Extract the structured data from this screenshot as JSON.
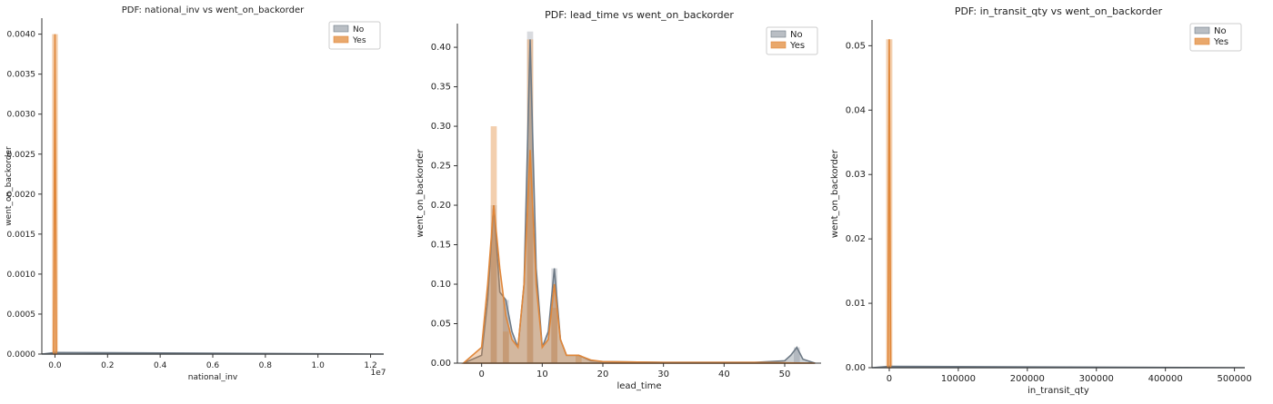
{
  "colors": {
    "no": "#6e7a86",
    "yes": "#e0873a",
    "no_fill": "#b9bec4",
    "yes_fill": "#e9a86c"
  },
  "chart_data": [
    {
      "type": "area",
      "title": "PDF: national_inv vs went_on_backorder",
      "xlabel": "national_inv",
      "ylabel": "went_on_backorder",
      "x_offset_label": "1e7",
      "xlim": [
        -0.05,
        1.25
      ],
      "ylim": [
        0,
        0.0042
      ],
      "xticks": [
        0.0,
        0.2,
        0.4,
        0.6,
        0.8,
        1.0,
        1.2
      ],
      "xtick_labels": [
        "0.0",
        "0.2",
        "0.4",
        "0.6",
        "0.8",
        "1.0",
        "1.2"
      ],
      "yticks": [
        0,
        0.0005,
        0.001,
        0.0015,
        0.002,
        0.0025,
        0.003,
        0.0035,
        0.004
      ],
      "ytick_labels": [
        "0.0000",
        "0.0005",
        "0.0010",
        "0.0015",
        "0.0020",
        "0.0025",
        "0.0030",
        "0.0035",
        "0.0040"
      ],
      "legend": "top-right",
      "series": [
        {
          "name": "No",
          "bars": [],
          "x": [
            -0.05,
            0,
            1.25
          ],
          "y": [
            0,
            2e-05,
            0
          ]
        },
        {
          "name": "Yes",
          "bars": [
            [
              0,
              0.004
            ]
          ],
          "x": [
            -0.005,
            0,
            0.005
          ],
          "y": [
            0,
            0.004,
            0
          ]
        }
      ]
    },
    {
      "type": "area",
      "title": "PDF: lead_time vs went_on_backorder",
      "xlabel": "lead_time",
      "ylabel": "went_on_backorder",
      "x_offset_label": "",
      "xlim": [
        -4,
        56
      ],
      "ylim": [
        0,
        0.43
      ],
      "xticks": [
        0,
        10,
        20,
        30,
        40,
        50
      ],
      "xtick_labels": [
        "0",
        "10",
        "20",
        "30",
        "40",
        "50"
      ],
      "yticks": [
        0,
        0.05,
        0.1,
        0.15,
        0.2,
        0.25,
        0.3,
        0.35,
        0.4
      ],
      "ytick_labels": [
        "0.00",
        "0.05",
        "0.10",
        "0.15",
        "0.20",
        "0.25",
        "0.30",
        "0.35",
        "0.40"
      ],
      "legend": "top-right",
      "series": [
        {
          "name": "No",
          "bars": [
            [
              2,
              0.2
            ],
            [
              4,
              0.08
            ],
            [
              8,
              0.42
            ],
            [
              12,
              0.12
            ],
            [
              52,
              0.02
            ]
          ],
          "x": [
            -3,
            0,
            1,
            2,
            3,
            4,
            5,
            6,
            7,
            8,
            9,
            10,
            11,
            12,
            13,
            14,
            16,
            18,
            20,
            30,
            45,
            50,
            51,
            52,
            53,
            55
          ],
          "y": [
            0,
            0.01,
            0.08,
            0.2,
            0.09,
            0.08,
            0.04,
            0.02,
            0.1,
            0.41,
            0.12,
            0.02,
            0.04,
            0.12,
            0.03,
            0.01,
            0.01,
            0.003,
            0.002,
            0.001,
            0.001,
            0.003,
            0.01,
            0.02,
            0.005,
            0
          ]
        },
        {
          "name": "Yes",
          "bars": [
            [
              2,
              0.3
            ],
            [
              4,
              0.04
            ],
            [
              8,
              0.41
            ],
            [
              12,
              0.07
            ],
            [
              16,
              0.01
            ]
          ],
          "x": [
            -3,
            0,
            1,
            2,
            3,
            4,
            5,
            6,
            7,
            8,
            9,
            10,
            11,
            12,
            13,
            14,
            16,
            18,
            20,
            30,
            45,
            55
          ],
          "y": [
            0,
            0.02,
            0.1,
            0.2,
            0.12,
            0.06,
            0.03,
            0.02,
            0.1,
            0.27,
            0.1,
            0.02,
            0.03,
            0.1,
            0.03,
            0.01,
            0.01,
            0.004,
            0.002,
            0.001,
            0.001,
            0
          ]
        }
      ]
    },
    {
      "type": "area",
      "title": "PDF: in_transit_qty vs went_on_backorder",
      "xlabel": "in_transit_qty",
      "ylabel": "went_on_backorder",
      "x_offset_label": "",
      "xlim": [
        -25000,
        515000
      ],
      "ylim": [
        0,
        0.054
      ],
      "xticks": [
        0,
        100000,
        200000,
        300000,
        400000,
        500000
      ],
      "xtick_labels": [
        "0",
        "100000",
        "200000",
        "300000",
        "400000",
        "500000"
      ],
      "yticks": [
        0,
        0.01,
        0.02,
        0.03,
        0.04,
        0.05
      ],
      "ytick_labels": [
        "0.00",
        "0.01",
        "0.02",
        "0.03",
        "0.04",
        "0.05"
      ],
      "legend": "top-right",
      "series": [
        {
          "name": "No",
          "bars": [],
          "x": [
            -25000,
            0,
            515000
          ],
          "y": [
            0,
            0.0002,
            0
          ]
        },
        {
          "name": "Yes",
          "bars": [
            [
              0,
              0.051
            ]
          ],
          "x": [
            -2000,
            0,
            2000
          ],
          "y": [
            0,
            0.051,
            0
          ]
        }
      ]
    }
  ]
}
